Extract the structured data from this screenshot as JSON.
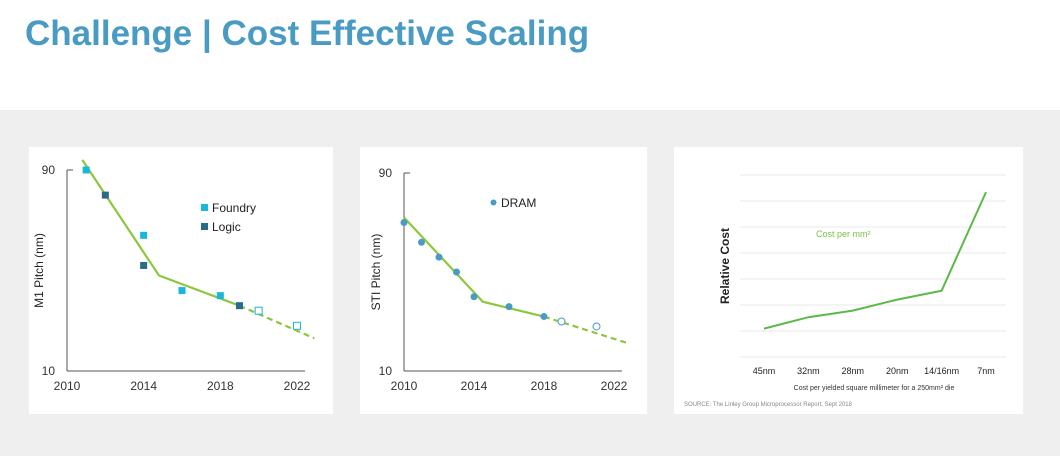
{
  "page_title": "Challenge | Cost Effective Scaling",
  "colors": {
    "title": "#4a9bc4",
    "trend": "#8dc63f",
    "foundry": "#1ab7d9",
    "logic": "#2a6b88",
    "dram": "#4a9bc4",
    "cost_line": "#5cb848"
  },
  "chart_data": [
    {
      "type": "scatter",
      "ylabel": "M1 Pitch (nm)",
      "xlim": [
        2010,
        2022
      ],
      "ylim": [
        10,
        90
      ],
      "x_ticks": [
        "2010",
        "2014",
        "2018",
        "2022"
      ],
      "y_ticks": [
        "10",
        "90"
      ],
      "legend_position": "top-right",
      "series": [
        {
          "name": "Foundry",
          "marker": "square",
          "points": [
            [
              2011,
              90
            ],
            [
              2014,
              64
            ],
            [
              2016,
              42
            ],
            [
              2018,
              40
            ]
          ],
          "projected": [
            [
              2020,
              34
            ],
            [
              2022,
              28
            ]
          ]
        },
        {
          "name": "Logic",
          "marker": "square",
          "points": [
            [
              2012,
              80
            ],
            [
              2014,
              52
            ],
            [
              2019,
              36
            ]
          ],
          "projected": []
        }
      ],
      "trend": {
        "solid": [
          [
            2010.8,
            94
          ],
          [
            2014.8,
            48
          ],
          [
            2019,
            36
          ]
        ],
        "dashed": [
          [
            2019,
            36
          ],
          [
            2022.9,
            23
          ]
        ]
      }
    },
    {
      "type": "scatter",
      "ylabel": "STI Pitch (nm)",
      "xlim": [
        2010,
        2022
      ],
      "ylim": [
        10,
        90
      ],
      "x_ticks": [
        "2010",
        "2014",
        "2018",
        "2022"
      ],
      "y_ticks": [
        "10",
        "90"
      ],
      "legend_position": "top-right",
      "series": [
        {
          "name": "DRAM",
          "marker": "circle",
          "points": [
            [
              2010,
              70
            ],
            [
              2011,
              62
            ],
            [
              2012,
              56
            ],
            [
              2013,
              50
            ],
            [
              2014,
              40
            ],
            [
              2016,
              36
            ],
            [
              2018,
              32
            ]
          ],
          "projected": [
            [
              2019,
              30
            ],
            [
              2021,
              28
            ]
          ]
        }
      ],
      "trend": {
        "solid": [
          [
            2010,
            72
          ],
          [
            2014.5,
            38
          ],
          [
            2018,
            32
          ]
        ],
        "dashed": [
          [
            2018,
            32
          ],
          [
            2022.9,
            21
          ]
        ]
      }
    },
    {
      "type": "line",
      "ylabel": "Relative Cost",
      "xlabel": "Cost per yielded square millimeter for a 250mm² die",
      "categories": [
        "45nm",
        "32nm",
        "28nm",
        "20nm",
        "14/16nm",
        "7nm"
      ],
      "series": [
        {
          "name": "Cost per mm²",
          "values": [
            1.0,
            1.4,
            1.63,
            2.02,
            2.33,
            5.8
          ]
        }
      ],
      "ylim": [
        0,
        6.4
      ],
      "grid": true,
      "source": "SOURCE: The Linley Group Microprocessor Report, Sept 2018"
    }
  ]
}
